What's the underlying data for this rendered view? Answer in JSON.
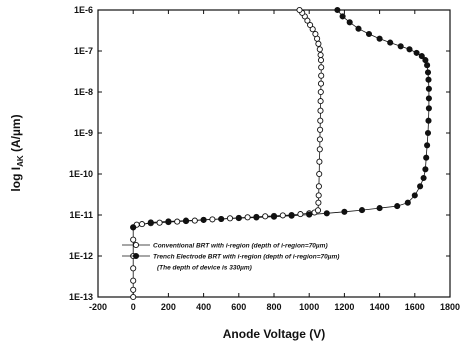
{
  "chart_data": {
    "type": "scatter",
    "xlabel": "Anode Voltage (V)",
    "ylabel": "log I_AK (A/µm)",
    "ylabel_main": "log I",
    "ylabel_sub": "AK",
    "ylabel_unit": " (A/µm)",
    "xlim": [
      -200,
      1800
    ],
    "ylim_log10": [
      -13,
      -6
    ],
    "x_ticks": [
      -200,
      0,
      200,
      400,
      600,
      800,
      1000,
      1200,
      1400,
      1600,
      1800
    ],
    "x_tick_labels": [
      "-200",
      "0",
      "200",
      "400",
      "600",
      "800",
      "1000",
      "1200",
      "1400",
      "1600",
      "1800"
    ],
    "y_tick_exponents": [
      -13,
      -12,
      -11,
      -10,
      -9,
      -8,
      -7,
      -6
    ],
    "y_tick_labels": [
      "1E-13",
      "1E-12",
      "1E-11",
      "1E-10",
      "1E-9",
      "1E-8",
      "1E-7",
      "1E-6"
    ],
    "grid": false,
    "legend_position": "bottom-center",
    "series": [
      {
        "name": "Conventional BRT with i-region (depth of i-region=70µm)",
        "marker": "open-circle",
        "points": [
          [
            0,
            1e-13
          ],
          [
            0,
            1.5e-13
          ],
          [
            0,
            2.5e-13
          ],
          [
            0,
            5e-13
          ],
          [
            0,
            1e-12
          ],
          [
            0,
            2.5e-12
          ],
          [
            0,
            5e-12
          ],
          [
            20,
            5.8e-12
          ],
          [
            50,
            6e-12
          ],
          [
            100,
            6.3e-12
          ],
          [
            150,
            6.5e-12
          ],
          [
            200,
            6.7e-12
          ],
          [
            250,
            6.9e-12
          ],
          [
            300,
            7.1e-12
          ],
          [
            350,
            7.3e-12
          ],
          [
            400,
            7.6e-12
          ],
          [
            450,
            7.8e-12
          ],
          [
            500,
            8e-12
          ],
          [
            550,
            8.3e-12
          ],
          [
            600,
            8.5e-12
          ],
          [
            650,
            8.8e-12
          ],
          [
            700,
            9e-12
          ],
          [
            750,
            9.3e-12
          ],
          [
            800,
            9.5e-12
          ],
          [
            850,
            9.8e-12
          ],
          [
            900,
            1e-11
          ],
          [
            950,
            1.05e-11
          ],
          [
            1000,
            1.1e-11
          ],
          [
            1030,
            1.15e-11
          ],
          [
            1050,
            1.3e-11
          ],
          [
            1052,
            2e-11
          ],
          [
            1054,
            3e-11
          ],
          [
            1055,
            5e-11
          ],
          [
            1057,
            1e-10
          ],
          [
            1058,
            2e-10
          ],
          [
            1060,
            4e-10
          ],
          [
            1061,
            7e-10
          ],
          [
            1062,
            1.2e-09
          ],
          [
            1063,
            2e-09
          ],
          [
            1064,
            3.5e-09
          ],
          [
            1065,
            6e-09
          ],
          [
            1066,
            1e-08
          ],
          [
            1067,
            1.6e-08
          ],
          [
            1068,
            2.5e-08
          ],
          [
            1068,
            4e-08
          ],
          [
            1067,
            6e-08
          ],
          [
            1065,
            8e-08
          ],
          [
            1060,
            1.1e-07
          ],
          [
            1052,
            1.5e-07
          ],
          [
            1045,
            2e-07
          ],
          [
            1035,
            2.6e-07
          ],
          [
            1020,
            3.4e-07
          ],
          [
            1005,
            4.3e-07
          ],
          [
            990,
            5.5e-07
          ],
          [
            975,
            7e-07
          ],
          [
            960,
            8.5e-07
          ],
          [
            945,
            1e-06
          ]
        ]
      },
      {
        "name": "Trench Electrode BRT with i-region (depth of i-region=70µm)",
        "marker": "filled-circle",
        "points": [
          [
            0,
            5e-12
          ],
          [
            100,
            6.6e-12
          ],
          [
            200,
            7e-12
          ],
          [
            300,
            7.3e-12
          ],
          [
            400,
            7.6e-12
          ],
          [
            500,
            8e-12
          ],
          [
            600,
            8.4e-12
          ],
          [
            700,
            8.7e-12
          ],
          [
            800,
            9.1e-12
          ],
          [
            900,
            9.6e-12
          ],
          [
            1000,
            1.02e-11
          ],
          [
            1100,
            1.1e-11
          ],
          [
            1200,
            1.2e-11
          ],
          [
            1300,
            1.32e-11
          ],
          [
            1400,
            1.47e-11
          ],
          [
            1500,
            1.65e-11
          ],
          [
            1560,
            2e-11
          ],
          [
            1600,
            3e-11
          ],
          [
            1630,
            5e-11
          ],
          [
            1650,
            8e-11
          ],
          [
            1660,
            1.3e-10
          ],
          [
            1665,
            2.5e-10
          ],
          [
            1670,
            5e-10
          ],
          [
            1675,
            1e-09
          ],
          [
            1678,
            2e-09
          ],
          [
            1680,
            4e-09
          ],
          [
            1680,
            7e-09
          ],
          [
            1680,
            1.2e-08
          ],
          [
            1678,
            2e-08
          ],
          [
            1675,
            3e-08
          ],
          [
            1670,
            4.5e-08
          ],
          [
            1660,
            6e-08
          ],
          [
            1640,
            7.5e-08
          ],
          [
            1610,
            9e-08
          ],
          [
            1570,
            1.1e-07
          ],
          [
            1520,
            1.3e-07
          ],
          [
            1460,
            1.6e-07
          ],
          [
            1400,
            2e-07
          ],
          [
            1340,
            2.6e-07
          ],
          [
            1280,
            3.5e-07
          ],
          [
            1230,
            5e-07
          ],
          [
            1190,
            7e-07
          ],
          [
            1160,
            1e-06
          ]
        ]
      }
    ],
    "annotation": "(The depth of device is 330µm)"
  }
}
